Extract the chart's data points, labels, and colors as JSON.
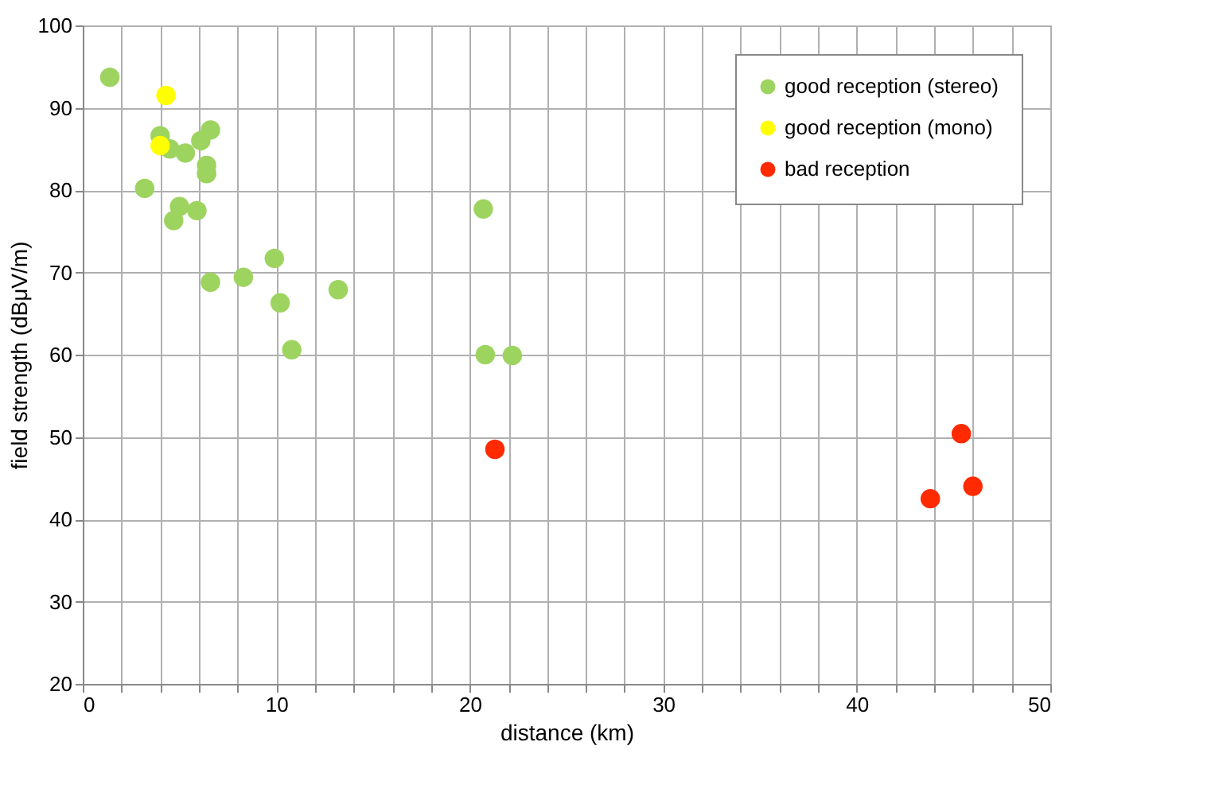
{
  "chart_data": {
    "type": "scatter",
    "xlabel": "distance (km)",
    "ylabel": "field strength (dBμV/m)",
    "xlim": [
      0,
      50
    ],
    "ylim": [
      20,
      100
    ],
    "xticks": [
      0,
      {
        "value": 2,
        "label": null
      },
      {
        "value": 4,
        "label": null
      },
      {
        "value": 6,
        "label": null
      },
      {
        "value": 8,
        "label": null
      },
      10,
      {
        "value": 12,
        "label": null
      },
      {
        "value": 14,
        "label": null
      },
      {
        "value": 16,
        "label": null
      },
      {
        "value": 18,
        "label": null
      },
      20,
      {
        "value": 22,
        "label": null
      },
      {
        "value": 24,
        "label": null
      },
      {
        "value": 26,
        "label": null
      },
      {
        "value": 28,
        "label": null
      },
      30,
      {
        "value": 32,
        "label": null
      },
      {
        "value": 34,
        "label": null
      },
      {
        "value": 36,
        "label": null
      },
      {
        "value": 38,
        "label": null
      },
      40,
      {
        "value": 42,
        "label": null
      },
      {
        "value": 44,
        "label": null
      },
      {
        "value": 46,
        "label": null
      },
      {
        "value": 48,
        "label": null
      },
      50
    ],
    "yticks": [
      20,
      30,
      40,
      50,
      60,
      70,
      80,
      90,
      100
    ],
    "grid": true,
    "legend": "top right",
    "marker": "circle",
    "series": [
      {
        "name": "good reception (stereo)",
        "color": "#9dd45f",
        "x": [
          1.4,
          3.2,
          4.0,
          4.5,
          4.7,
          5.0,
          5.3,
          5.9,
          6.1,
          6.4,
          6.4,
          6.6,
          6.6,
          8.3,
          9.9,
          10.2,
          10.8,
          13.2,
          20.7,
          20.8,
          22.2
        ],
        "values": [
          93.7,
          80.2,
          86.6,
          85.0,
          76.3,
          78.0,
          84.5,
          77.5,
          86.0,
          83.0,
          82.0,
          87.3,
          68.8,
          69.4,
          71.7,
          66.3,
          60.6,
          67.9,
          77.7,
          60.0,
          59.9
        ]
      },
      {
        "name": "good reception (mono)",
        "color": "#ffff00",
        "x": [
          4.3,
          4.0
        ],
        "values": [
          91.5,
          85.4
        ]
      },
      {
        "name": "bad reception",
        "color": "#ff2a00",
        "x": [
          21.3,
          43.8,
          45.4,
          46.0
        ],
        "values": [
          48.5,
          42.5,
          50.4,
          44.0
        ]
      }
    ]
  }
}
